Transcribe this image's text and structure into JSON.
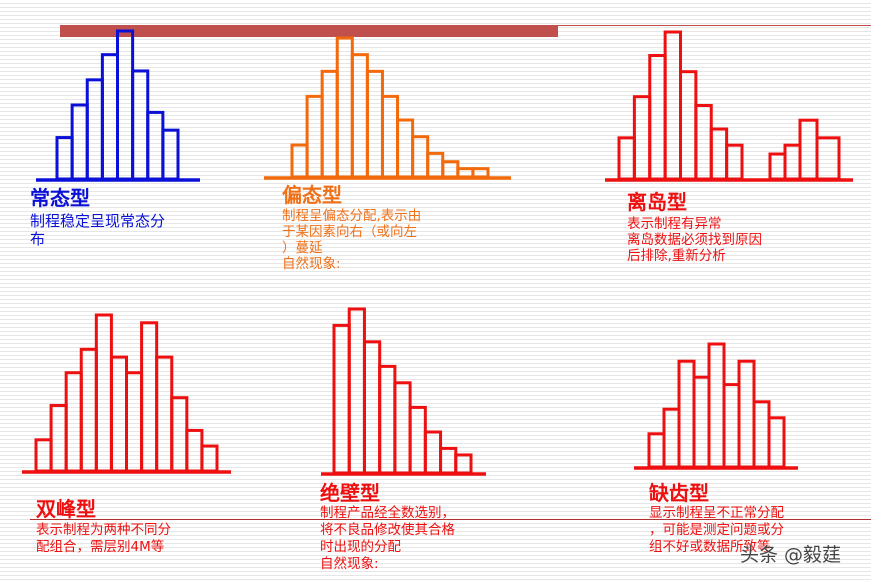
{
  "colors": {
    "normal": "#0a10d8",
    "skewed": "#f26a0c",
    "red": "#ee1010",
    "top_bar": "#c0504d"
  },
  "charts": [
    {
      "id": "normal",
      "title": "常态型",
      "desc": [
        "制程稳定呈现常态分",
        "布"
      ],
      "color_key": "normal",
      "values": [
        2.8,
        5.0,
        6.7,
        8.4,
        10,
        7.3,
        4.5,
        3.3
      ]
    },
    {
      "id": "skewed",
      "title": "偏态型",
      "desc": [
        "制程呈偏态分配,表示由",
        "于某因素向右（或向左",
        "）蔓延",
        "自然现象:"
      ],
      "color_key": "skewed",
      "values": [
        2.3,
        5.8,
        7.6,
        10,
        8.8,
        7.6,
        5.8,
        4.1,
        2.9,
        1.7,
        1.1,
        0.6,
        0.6
      ]
    },
    {
      "id": "island",
      "title": "离岛型",
      "desc": [
        "表示制程有异常",
        "离岛数据必须找到原因",
        "后排除,重新分析"
      ],
      "color_key": "red",
      "values": [
        2.8,
        5.6,
        8.4,
        10,
        7.3,
        5.0,
        3.4,
        2.3
      ],
      "island_values": [
        1.7,
        2.3,
        4.0,
        2.8
      ]
    },
    {
      "id": "bimodal",
      "title": "双峰型",
      "desc": [
        "表示制程为两种不同分",
        "配组合，需层别4M等"
      ],
      "color_key": "red",
      "values": [
        2.0,
        4.2,
        6.3,
        7.8,
        10,
        7.3,
        6.3,
        9.5,
        7.3,
        4.7,
        2.6,
        1.6
      ]
    },
    {
      "id": "cliff",
      "title": "绝壁型",
      "desc": [
        "制程产品经全数选别，",
        "将不良品修改使其合格",
        "时出现的分配",
        "自然现象:"
      ],
      "color_key": "red",
      "values": [
        9.0,
        10,
        8.0,
        6.5,
        5.5,
        4.0,
        2.5,
        1.5,
        1.1
      ]
    },
    {
      "id": "comb",
      "title": "缺齿型",
      "desc": [
        "显示制程呈不正常分配",
        "，可能是测定问题或分",
        "组不好或数据所致等"
      ],
      "color_key": "red",
      "values": [
        2.7,
        4.7,
        8.6,
        7.3,
        10,
        6.7,
        8.6,
        5.3,
        4.0
      ]
    }
  ],
  "watermark": "头条 @毅莛"
}
